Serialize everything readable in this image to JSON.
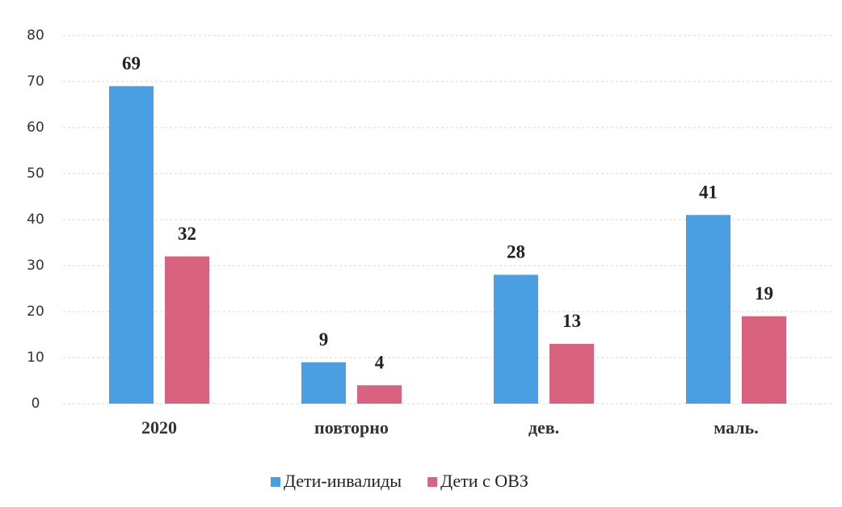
{
  "chart_data": {
    "type": "bar",
    "categories": [
      "2020",
      "повторно",
      "дев.",
      "маль."
    ],
    "series": [
      {
        "name": "Дети-инвалиды",
        "color": "#4a9fe3",
        "values": [
          69,
          9,
          28,
          41
        ]
      },
      {
        "name": "Дети с ОВЗ",
        "color": "#d9627e",
        "values": [
          32,
          4,
          13,
          19
        ]
      }
    ],
    "ylim": [
      0,
      80
    ],
    "yticks": [
      0,
      10,
      20,
      30,
      40,
      50,
      60,
      70,
      80
    ],
    "grid": true,
    "legend": "bottom"
  }
}
